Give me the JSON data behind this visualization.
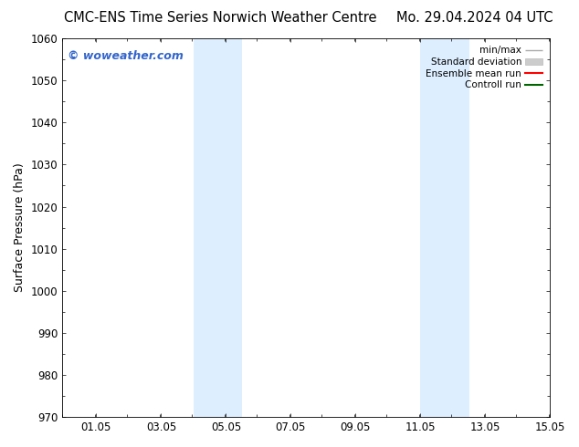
{
  "title_left": "CMC-ENS Time Series Norwich Weather Centre",
  "title_right": "Mo. 29.04.2024 04 UTC",
  "ylabel": "Surface Pressure (hPa)",
  "ylim": [
    970,
    1060
  ],
  "yticks": [
    970,
    980,
    990,
    1000,
    1010,
    1020,
    1030,
    1040,
    1050,
    1060
  ],
  "xlim": [
    0.0,
    15.05
  ],
  "xticks": [
    1.05,
    3.05,
    5.05,
    7.05,
    9.05,
    11.05,
    13.05,
    15.05
  ],
  "xticklabels": [
    "01.05",
    "03.05",
    "05.05",
    "07.05",
    "09.05",
    "11.05",
    "13.05",
    "15.05"
  ],
  "shaded_bands": [
    {
      "x_start": 4.05,
      "x_end": 5.55
    },
    {
      "x_start": 11.05,
      "x_end": 12.55
    }
  ],
  "shade_color": "#ddeeff",
  "watermark_text": "© woweather.com",
  "watermark_color": "#3366cc",
  "legend_entries": [
    {
      "label": "min/max",
      "color": "#aaaaaa",
      "lw": 1.0
    },
    {
      "label": "Standard deviation",
      "color": "#cccccc",
      "lw": 6
    },
    {
      "label": "Ensemble mean run",
      "color": "red",
      "lw": 1.5
    },
    {
      "label": "Controll run",
      "color": "darkgreen",
      "lw": 1.5
    }
  ],
  "background_color": "#ffffff",
  "title_fontsize": 10.5,
  "ylabel_fontsize": 9,
  "tick_fontsize": 8.5,
  "watermark_fontsize": 9
}
